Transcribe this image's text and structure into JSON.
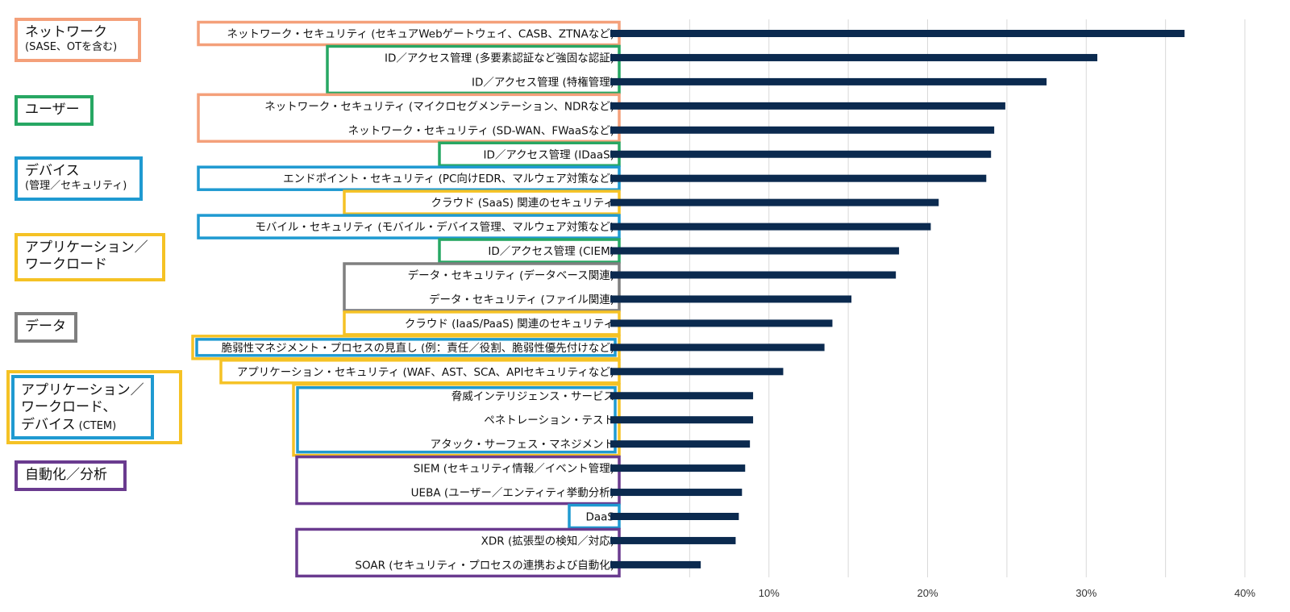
{
  "chart_data": {
    "type": "bar",
    "orientation": "horizontal",
    "xlim": [
      0,
      40
    ],
    "x_ticks": [
      "10%",
      "20%",
      "30%",
      "40%"
    ],
    "grid": true,
    "bar_color": "#0b2a4f",
    "categories": [
      {
        "label": "ネットワーク・セキュリティ (セキュアWebゲートウェイ、CASB、ZTNAなど)",
        "value": 36.2,
        "group": "network"
      },
      {
        "label": "ID／アクセス管理 (多要素認証など強固な認証)",
        "value": 30.7,
        "group": "user"
      },
      {
        "label": "ID／アクセス管理 (特権管理)",
        "value": 27.5,
        "group": "user"
      },
      {
        "label": "ネットワーク・セキュリティ (マイクロセグメンテーション、NDRなど)",
        "value": 24.9,
        "group": "network"
      },
      {
        "label": "ネットワーク・セキュリティ (SD-WAN、FWaaSなど)",
        "value": 24.2,
        "group": "network"
      },
      {
        "label": "ID／アクセス管理 (IDaaS)",
        "value": 24.0,
        "group": "user"
      },
      {
        "label": "エンドポイント・セキュリティ (PC向けEDR、マルウェア対策など)",
        "value": 23.7,
        "group": "device"
      },
      {
        "label": "クラウド (SaaS) 関連のセキュリティ",
        "value": 20.7,
        "group": "app"
      },
      {
        "label": "モバイル・セキュリティ (モバイル・デバイス管理、マルウェア対策など)",
        "value": 20.2,
        "group": "device"
      },
      {
        "label": "ID／アクセス管理 (CIEM)",
        "value": 18.2,
        "group": "user"
      },
      {
        "label": "データ・セキュリティ (データベース関連)",
        "value": 18.0,
        "group": "data"
      },
      {
        "label": "データ・セキュリティ (ファイル関連)",
        "value": 15.2,
        "group": "data"
      },
      {
        "label": "クラウド (IaaS/PaaS) 関連のセキュリティ",
        "value": 14.0,
        "group": "app"
      },
      {
        "label": "脆弱性マネジメント・プロセスの見直し (例：責任／役割、脆弱性優先付けなど)",
        "value": 13.5,
        "group": "ctem"
      },
      {
        "label": "アプリケーション・セキュリティ (WAF、AST、SCA、APIセキュリティなど)",
        "value": 10.9,
        "group": "app"
      },
      {
        "label": "脅威インテリジェンス・サービス",
        "value": 9.0,
        "group": "ctem"
      },
      {
        "label": "ペネトレーション・テスト",
        "value": 9.0,
        "group": "ctem"
      },
      {
        "label": "アタック・サーフェス・マネジメント",
        "value": 8.8,
        "group": "ctem"
      },
      {
        "label": "SIEM (セキュリティ情報／イベント管理)",
        "value": 8.5,
        "group": "analytics"
      },
      {
        "label": "UEBA (ユーザー／エンティティ挙動分析)",
        "value": 8.3,
        "group": "analytics"
      },
      {
        "label": "DaaS",
        "value": 8.1,
        "group": "device"
      },
      {
        "label": "XDR (拡張型の検知／対応)",
        "value": 7.9,
        "group": "analytics"
      },
      {
        "label": "SOAR (セキュリティ・プロセスの連携および自動化)",
        "value": 5.7,
        "group": "analytics"
      }
    ]
  },
  "legend": {
    "network": {
      "title": "ネットワーク",
      "sub": "(SASE、OTを含む)",
      "color": "#f4a07a"
    },
    "user": {
      "title": "ユーザー",
      "sub": "",
      "color": "#27a763"
    },
    "device": {
      "title": "デバイス",
      "sub": "(管理／セキュリティ)",
      "color": "#1f9ad1"
    },
    "app": {
      "title": "アプリケーション／\nワークロード",
      "sub": "",
      "color": "#f5c225"
    },
    "data": {
      "title": "データ",
      "sub": "",
      "color": "#7f7f7f"
    },
    "ctem": {
      "title": "アプリケーション／\nワークロード、\nデバイス",
      "title_suffix": " (CTEM)",
      "color_outer": "#f5c225",
      "color_inner": "#1f9ad1"
    },
    "analytics": {
      "title": "自動化／分析",
      "sub": "",
      "color": "#6a3b8f"
    }
  }
}
